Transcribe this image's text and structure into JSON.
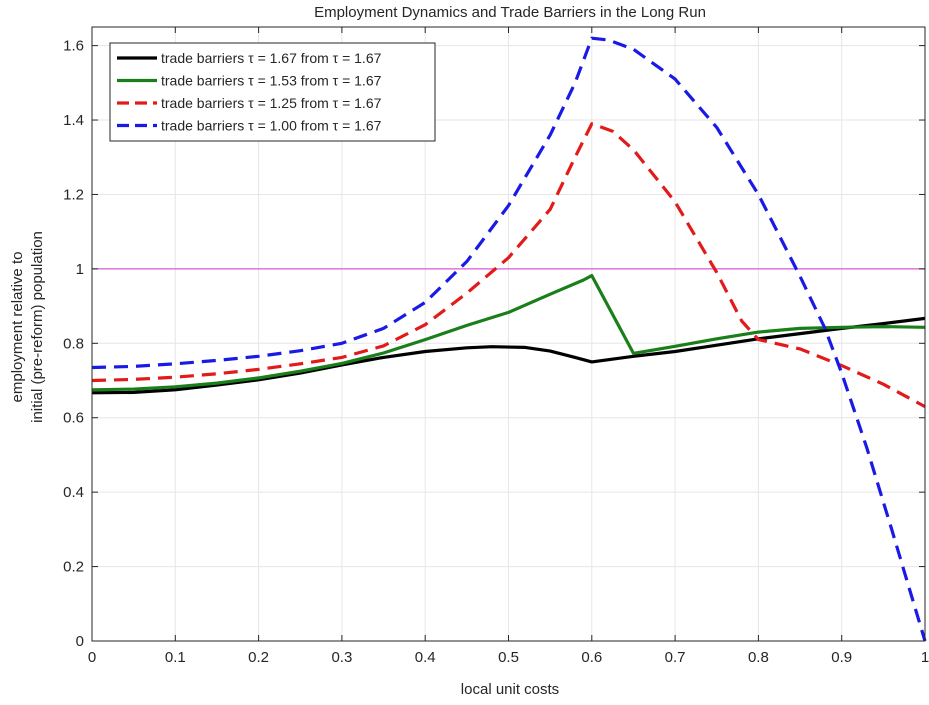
{
  "chart_data": {
    "type": "line",
    "title": "Employment Dynamics and Trade Barriers in the Long Run",
    "xlabel": "local unit costs",
    "ylabel_lines": [
      "employment relative to",
      "initial (pre-reform) population"
    ],
    "xlim": [
      0,
      1
    ],
    "ylim": [
      0,
      1.65
    ],
    "xticks": [
      0,
      0.1,
      0.2,
      0.3,
      0.4,
      0.5,
      0.6,
      0.7,
      0.8,
      0.9,
      1
    ],
    "xtick_labels": [
      "0",
      "0.1",
      "0.2",
      "0.3",
      "0.4",
      "0.5",
      "0.6",
      "0.7",
      "0.8",
      "0.9",
      "1"
    ],
    "yticks": [
      0,
      0.2,
      0.4,
      0.6,
      0.8,
      1,
      1.2,
      1.4,
      1.6
    ],
    "ytick_labels": [
      "0",
      "0.2",
      "0.4",
      "0.6",
      "0.8",
      "1",
      "1.2",
      "1.4",
      "1.6"
    ],
    "grid": true,
    "legend_position": "top-left",
    "reference_line": {
      "y": 1,
      "color": "#d85ad8"
    },
    "series": [
      {
        "name": "trade barriers τ = 1.67 from τ = 1.67",
        "color": "#000000",
        "dash": "solid",
        "points": [
          [
            0,
            0.667
          ],
          [
            0.05,
            0.668
          ],
          [
            0.1,
            0.675
          ],
          [
            0.15,
            0.688
          ],
          [
            0.2,
            0.702
          ],
          [
            0.25,
            0.72
          ],
          [
            0.3,
            0.742
          ],
          [
            0.35,
            0.762
          ],
          [
            0.4,
            0.778
          ],
          [
            0.45,
            0.788
          ],
          [
            0.48,
            0.791
          ],
          [
            0.52,
            0.789
          ],
          [
            0.55,
            0.779
          ],
          [
            0.58,
            0.762
          ],
          [
            0.6,
            0.75
          ],
          [
            0.65,
            0.765
          ],
          [
            0.7,
            0.778
          ],
          [
            0.75,
            0.795
          ],
          [
            0.8,
            0.812
          ],
          [
            0.85,
            0.826
          ],
          [
            0.9,
            0.84
          ],
          [
            0.95,
            0.853
          ],
          [
            1.0,
            0.867
          ]
        ]
      },
      {
        "name": "trade barriers τ = 1.53 from τ = 1.67",
        "color": "#1a7f1a",
        "dash": "solid",
        "points": [
          [
            0,
            0.675
          ],
          [
            0.05,
            0.677
          ],
          [
            0.1,
            0.683
          ],
          [
            0.15,
            0.693
          ],
          [
            0.2,
            0.707
          ],
          [
            0.25,
            0.725
          ],
          [
            0.3,
            0.746
          ],
          [
            0.35,
            0.774
          ],
          [
            0.4,
            0.81
          ],
          [
            0.45,
            0.848
          ],
          [
            0.5,
            0.883
          ],
          [
            0.55,
            0.932
          ],
          [
            0.59,
            0.97
          ],
          [
            0.6,
            0.982
          ],
          [
            0.65,
            0.773
          ],
          [
            0.7,
            0.792
          ],
          [
            0.75,
            0.812
          ],
          [
            0.8,
            0.83
          ],
          [
            0.85,
            0.84
          ],
          [
            0.9,
            0.843
          ],
          [
            0.95,
            0.845
          ],
          [
            1.0,
            0.843
          ]
        ]
      },
      {
        "name": "trade barriers τ = 1.25 from τ = 1.67",
        "color": "#e31a1a",
        "dash": "dashed",
        "points": [
          [
            0,
            0.7
          ],
          [
            0.05,
            0.703
          ],
          [
            0.1,
            0.709
          ],
          [
            0.15,
            0.718
          ],
          [
            0.2,
            0.73
          ],
          [
            0.25,
            0.745
          ],
          [
            0.3,
            0.762
          ],
          [
            0.35,
            0.793
          ],
          [
            0.4,
            0.85
          ],
          [
            0.45,
            0.935
          ],
          [
            0.5,
            1.03
          ],
          [
            0.55,
            1.16
          ],
          [
            0.58,
            1.3
          ],
          [
            0.6,
            1.39
          ],
          [
            0.625,
            1.37
          ],
          [
            0.65,
            1.32
          ],
          [
            0.7,
            1.18
          ],
          [
            0.75,
            0.99
          ],
          [
            0.78,
            0.86
          ],
          [
            0.8,
            0.81
          ],
          [
            0.85,
            0.785
          ],
          [
            0.9,
            0.74
          ],
          [
            0.95,
            0.69
          ],
          [
            1.0,
            0.63
          ]
        ]
      },
      {
        "name": "trade barriers τ = 1.00 from τ = 1.67",
        "color": "#1a1ae6",
        "dash": "dashed",
        "points": [
          [
            0,
            0.735
          ],
          [
            0.05,
            0.738
          ],
          [
            0.1,
            0.745
          ],
          [
            0.15,
            0.754
          ],
          [
            0.2,
            0.765
          ],
          [
            0.25,
            0.78
          ],
          [
            0.3,
            0.8
          ],
          [
            0.35,
            0.84
          ],
          [
            0.4,
            0.91
          ],
          [
            0.45,
            1.02
          ],
          [
            0.5,
            1.17
          ],
          [
            0.55,
            1.36
          ],
          [
            0.58,
            1.5
          ],
          [
            0.6,
            1.62
          ],
          [
            0.62,
            1.615
          ],
          [
            0.65,
            1.59
          ],
          [
            0.7,
            1.51
          ],
          [
            0.75,
            1.38
          ],
          [
            0.8,
            1.2
          ],
          [
            0.85,
            0.98
          ],
          [
            0.88,
            0.84
          ],
          [
            0.9,
            0.72
          ],
          [
            0.93,
            0.52
          ],
          [
            0.96,
            0.3
          ],
          [
            0.98,
            0.15
          ],
          [
            1.0,
            0.0
          ]
        ]
      }
    ]
  }
}
